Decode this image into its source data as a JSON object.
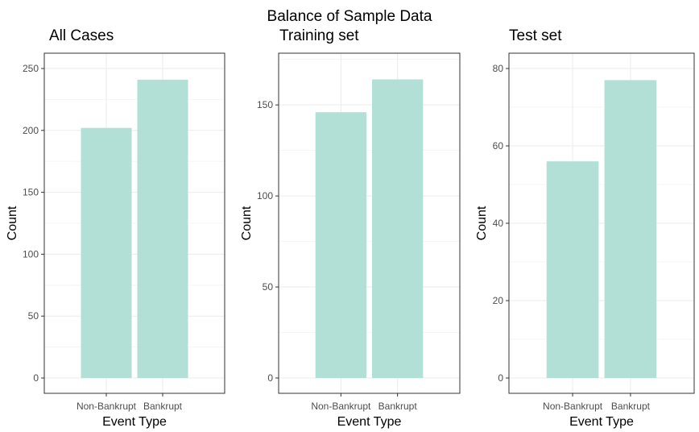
{
  "main_title": "Balance of Sample Data",
  "colors": {
    "bar": "#b2dfd6"
  },
  "chart_data": [
    {
      "type": "bar",
      "title": "All Cases",
      "xlabel": "Event Type",
      "ylabel": "Count",
      "categories": [
        "Non-Bankrupt",
        "Bankrupt"
      ],
      "values": [
        202,
        241
      ],
      "ylim": [
        0,
        250
      ],
      "yticks": [
        0,
        50,
        100,
        150,
        200,
        250
      ],
      "grid": true
    },
    {
      "type": "bar",
      "title": "Training set",
      "xlabel": "Event Type",
      "ylabel": "Count",
      "categories": [
        "Non-Bankrupt",
        "Bankrupt"
      ],
      "values": [
        146,
        164
      ],
      "ylim": [
        0,
        170
      ],
      "yticks": [
        0,
        50,
        100,
        150
      ],
      "grid": true
    },
    {
      "type": "bar",
      "title": "Test set",
      "xlabel": "Event Type",
      "ylabel": "Count",
      "categories": [
        "Non-Bankrupt",
        "Bankrupt"
      ],
      "values": [
        56,
        77
      ],
      "ylim": [
        0,
        80
      ],
      "yticks": [
        0,
        20,
        40,
        60,
        80
      ],
      "grid": true
    }
  ]
}
